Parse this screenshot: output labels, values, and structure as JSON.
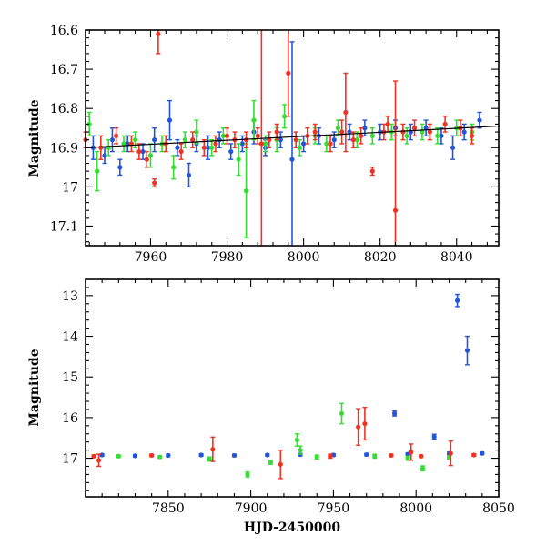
{
  "chart_data": [
    {
      "type": "scatter",
      "ylabel": "Magnitude",
      "xlabel": "",
      "xlim": [
        7943,
        8051
      ],
      "ylim": [
        16.6,
        17.15
      ],
      "y_inverted": true,
      "xticks": [
        7960,
        7980,
        8000,
        8020,
        8040
      ],
      "yticks": [
        16.6,
        16.7,
        16.8,
        16.9,
        17,
        17.1
      ],
      "ytick_labels": [
        "16.6",
        "16.7",
        "16.8",
        "16.9",
        "17",
        "17.1"
      ],
      "error_bars": true,
      "trend_line": {
        "x": [
          7943,
          8051
        ],
        "y": [
          16.9,
          16.845
        ]
      },
      "series": [
        {
          "color": "#2255dd",
          "points": [
            [
              7945,
              16.9,
              0.03
            ],
            [
              7948,
              16.92,
              0.02
            ],
            [
              7950,
              16.88,
              0.03
            ],
            [
              7952,
              16.95,
              0.02
            ],
            [
              7954,
              16.89,
              0.02
            ],
            [
              7958,
              16.91,
              0.02
            ],
            [
              7961,
              16.88,
              0.03
            ],
            [
              7965,
              16.83,
              0.05
            ],
            [
              7967,
              16.9,
              0.02
            ],
            [
              7970,
              16.97,
              0.03
            ],
            [
              7972,
              16.89,
              0.02
            ],
            [
              7975,
              16.9,
              0.03
            ],
            [
              7978,
              16.88,
              0.02
            ],
            [
              7981,
              16.91,
              0.02
            ],
            [
              7984,
              16.89,
              0.02
            ],
            [
              7987,
              16.86,
              0.03
            ],
            [
              7990,
              16.9,
              0.02
            ],
            [
              7994,
              16.88,
              0.02
            ],
            [
              7997,
              16.93,
              0.3
            ],
            [
              8000,
              16.89,
              0.02
            ],
            [
              8004,
              16.87,
              0.02
            ],
            [
              8008,
              16.88,
              0.02
            ],
            [
              8012,
              16.86,
              0.02
            ],
            [
              8016,
              16.85,
              0.02
            ],
            [
              8020,
              16.86,
              0.02
            ],
            [
              8024,
              16.85,
              0.02
            ],
            [
              8028,
              16.86,
              0.02
            ],
            [
              8032,
              16.85,
              0.02
            ],
            [
              8036,
              16.87,
              0.02
            ],
            [
              8039,
              16.9,
              0.03
            ],
            [
              8042,
              16.86,
              0.02
            ],
            [
              8046,
              16.83,
              0.02
            ]
          ]
        },
        {
          "color": "#33dd33",
          "points": [
            [
              7944,
              16.84,
              0.03
            ],
            [
              7946,
              16.96,
              0.05
            ],
            [
              7949,
              16.9,
              0.02
            ],
            [
              7953,
              16.89,
              0.02
            ],
            [
              7956,
              16.88,
              0.02
            ],
            [
              7960,
              16.92,
              0.03
            ],
            [
              7963,
              16.89,
              0.02
            ],
            [
              7966,
              16.95,
              0.03
            ],
            [
              7969,
              16.88,
              0.02
            ],
            [
              7972,
              16.86,
              0.03
            ],
            [
              7976,
              16.9,
              0.02
            ],
            [
              7979,
              16.87,
              0.02
            ],
            [
              7983,
              16.93,
              0.04
            ],
            [
              7985,
              17.01,
              0.12
            ],
            [
              7987,
              16.83,
              0.05
            ],
            [
              7990,
              16.89,
              0.02
            ],
            [
              7993,
              16.88,
              0.03
            ],
            [
              7995,
              16.82,
              0.03
            ],
            [
              7999,
              16.9,
              0.02
            ],
            [
              8003,
              16.87,
              0.02
            ],
            [
              8006,
              16.89,
              0.02
            ],
            [
              8009,
              16.85,
              0.02
            ],
            [
              8014,
              16.88,
              0.02
            ],
            [
              8018,
              16.87,
              0.02
            ],
            [
              8023,
              16.86,
              0.02
            ],
            [
              8027,
              16.87,
              0.02
            ],
            [
              8031,
              16.86,
              0.02
            ],
            [
              8035,
              16.87,
              0.02
            ],
            [
              8040,
              16.85,
              0.02
            ],
            [
              8044,
              16.86,
              0.02
            ]
          ]
        },
        {
          "color": "#ee3322",
          "points": [
            [
              7943,
              16.88,
              0.02
            ],
            [
              7947,
              16.9,
              0.03
            ],
            [
              7951,
              16.87,
              0.02
            ],
            [
              7955,
              16.89,
              0.02
            ],
            [
              7957,
              16.91,
              0.02
            ],
            [
              7959,
              16.93,
              0.02
            ],
            [
              7961,
              16.99,
              0.01
            ],
            [
              7962,
              16.61,
              0.05
            ],
            [
              7964,
              16.89,
              0.02
            ],
            [
              7968,
              16.91,
              0.02
            ],
            [
              7971,
              16.88,
              0.02
            ],
            [
              7974,
              16.9,
              0.02
            ],
            [
              7977,
              16.89,
              0.02
            ],
            [
              7980,
              16.87,
              0.02
            ],
            [
              7982,
              16.88,
              0.02
            ],
            [
              7985,
              16.88,
              0.02
            ],
            [
              7988,
              16.87,
              0.02
            ],
            [
              7989,
              16.89,
              0.33
            ],
            [
              7991,
              16.88,
              0.02
            ],
            [
              7993,
              16.86,
              0.02
            ],
            [
              7996,
              16.71,
              0.11
            ],
            [
              7998,
              16.88,
              0.02
            ],
            [
              8001,
              16.87,
              0.02
            ],
            [
              8003,
              16.86,
              0.02
            ],
            [
              8007,
              16.89,
              0.02
            ],
            [
              8010,
              16.86,
              0.03
            ],
            [
              8011,
              16.81,
              0.1
            ],
            [
              8013,
              16.88,
              0.02
            ],
            [
              8015,
              16.87,
              0.02
            ],
            [
              8018,
              16.96,
              0.01
            ],
            [
              8021,
              16.86,
              0.02
            ],
            [
              8022,
              16.84,
              0.02
            ],
            [
              8024,
              17.06,
              0.33
            ],
            [
              8026,
              16.86,
              0.02
            ],
            [
              8029,
              16.85,
              0.02
            ],
            [
              8033,
              16.86,
              0.02
            ],
            [
              8037,
              16.84,
              0.02
            ],
            [
              8041,
              16.85,
              0.02
            ],
            [
              8044,
              16.87,
              0.02
            ]
          ]
        }
      ]
    },
    {
      "type": "scatter",
      "ylabel": "Magnitude",
      "xlabel": "HJD-2450000",
      "xlim": [
        7800,
        8050
      ],
      "ylim": [
        12.6,
        17.95
      ],
      "y_inverted": true,
      "xticks": [
        7850,
        7900,
        7950,
        8000,
        8050
      ],
      "yticks": [
        13,
        14,
        15,
        16,
        17
      ],
      "ytick_labels": [
        "13",
        "14",
        "15",
        "16",
        "17"
      ],
      "error_bars": true,
      "series": [
        {
          "color": "#2255dd",
          "points": [
            [
              7810,
              16.92,
              0.03
            ],
            [
              7830,
              16.94,
              0.03
            ],
            [
              7850,
              16.93,
              0.03
            ],
            [
              7870,
              16.92,
              0.03
            ],
            [
              7890,
              16.93,
              0.03
            ],
            [
              7910,
              16.92,
              0.03
            ],
            [
              7930,
              16.91,
              0.03
            ],
            [
              7950,
              16.92,
              0.03
            ],
            [
              7970,
              16.91,
              0.03
            ],
            [
              7987,
              15.9,
              0.06
            ],
            [
              7995,
              16.9,
              0.03
            ],
            [
              8011,
              16.47,
              0.06
            ],
            [
              8020,
              16.88,
              0.03
            ],
            [
              8025,
              13.12,
              0.15
            ],
            [
              8031,
              14.35,
              0.35
            ],
            [
              8040,
              16.88,
              0.03
            ]
          ]
        },
        {
          "color": "#33dd33",
          "points": [
            [
              7820,
              16.95,
              0.03
            ],
            [
              7845,
              16.97,
              0.03
            ],
            [
              7875,
              17.02,
              0.05
            ],
            [
              7898,
              17.4,
              0.06
            ],
            [
              7912,
              17.1,
              0.05
            ],
            [
              7928,
              16.55,
              0.15
            ],
            [
              7930,
              16.8,
              0.1
            ],
            [
              7940,
              16.97,
              0.05
            ],
            [
              7955,
              15.9,
              0.25
            ],
            [
              7975,
              16.95,
              0.05
            ],
            [
              7995,
              17.0,
              0.05
            ],
            [
              8004,
              17.25,
              0.06
            ],
            [
              8020,
              16.98,
              0.04
            ]
          ]
        },
        {
          "color": "#ee3322",
          "points": [
            [
              7805,
              16.95,
              0.03
            ],
            [
              7808,
              17.05,
              0.15
            ],
            [
              7840,
              16.93,
              0.03
            ],
            [
              7877,
              16.78,
              0.3
            ],
            [
              7918,
              17.15,
              0.35
            ],
            [
              7948,
              16.95,
              0.05
            ],
            [
              7965,
              16.23,
              0.45
            ],
            [
              7969,
              16.15,
              0.4
            ],
            [
              7985,
              16.93,
              0.03
            ],
            [
              7997,
              16.85,
              0.2
            ],
            [
              8003,
              16.95,
              0.03
            ],
            [
              8021,
              16.88,
              0.3
            ],
            [
              8035,
              16.92,
              0.03
            ]
          ]
        }
      ]
    }
  ]
}
